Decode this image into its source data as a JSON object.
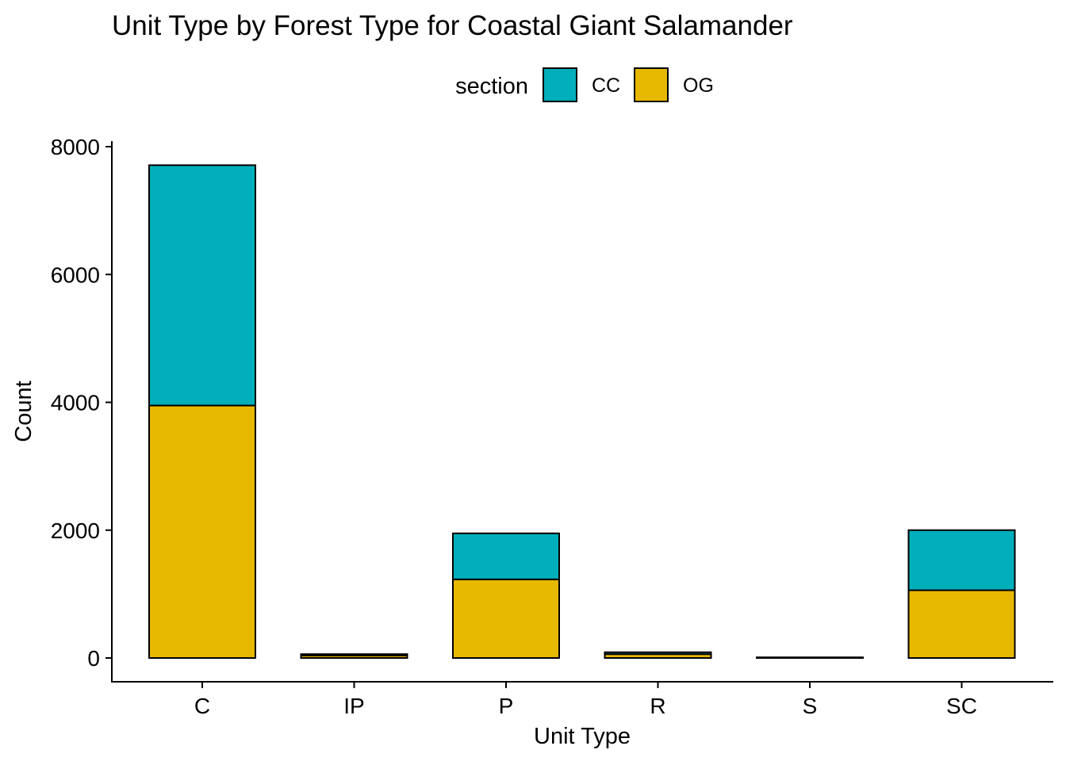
{
  "chart_data": {
    "type": "bar",
    "stacked": true,
    "title": "Unit Type by Forest Type for Coastal Giant Salamander",
    "xlabel": "Unit Type",
    "ylabel": "Count",
    "categories": [
      "C",
      "IP",
      "P",
      "R",
      "S",
      "SC"
    ],
    "series": [
      {
        "name": "OG",
        "color": "#E7B800",
        "values": [
          3950,
          40,
          1230,
          60,
          5,
          1060
        ]
      },
      {
        "name": "CC",
        "color": "#00AFBB",
        "values": [
          3760,
          20,
          720,
          30,
          5,
          940
        ]
      }
    ],
    "ylim": [
      0,
      8000
    ],
    "yticks": [
      0,
      2000,
      4000,
      6000,
      8000
    ],
    "ytick_labels": [
      "0",
      "2000",
      "4000",
      "6000",
      "8000"
    ],
    "legend": {
      "title": "section",
      "placement": "top",
      "entries": [
        {
          "label": "CC",
          "color": "#00AFBB"
        },
        {
          "label": "OG",
          "color": "#E7B800"
        }
      ]
    },
    "grid": false,
    "bar_outline_color": "#000000"
  }
}
